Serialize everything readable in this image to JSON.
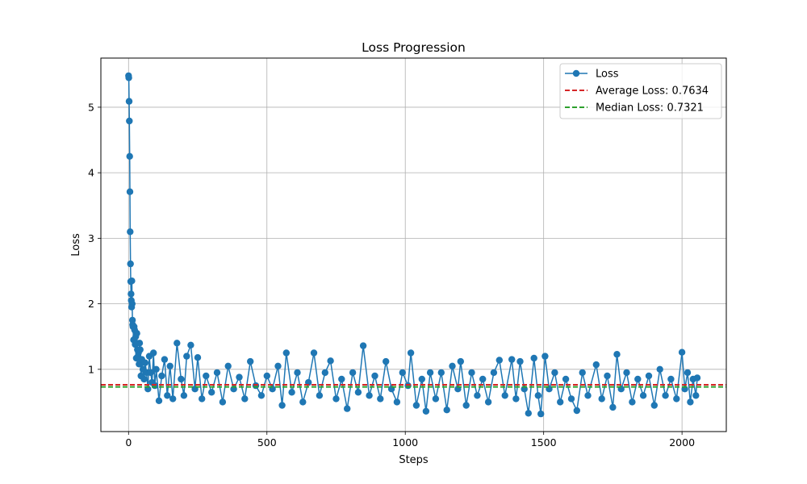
{
  "chart_data": {
    "type": "line",
    "title": "Loss Progression",
    "xlabel": "Steps",
    "ylabel": "Loss",
    "xlim": [
      -100,
      2160
    ],
    "ylim": [
      0.05,
      5.75
    ],
    "x_ticks": [
      0,
      500,
      1000,
      1500,
      2000
    ],
    "y_ticks": [
      1,
      2,
      3,
      4,
      5
    ],
    "grid": true,
    "legend_position": "top-right",
    "series": [
      {
        "name": "Loss",
        "color": "#1f77b4",
        "marker": "circle",
        "points": [
          [
            0,
            5.48
          ],
          [
            1,
            5.45
          ],
          [
            2,
            5.09
          ],
          [
            3,
            4.79
          ],
          [
            4,
            4.25
          ],
          [
            5,
            3.71
          ],
          [
            6,
            3.1
          ],
          [
            7,
            2.61
          ],
          [
            8,
            2.34
          ],
          [
            9,
            2.15
          ],
          [
            10,
            2.05
          ],
          [
            11,
            1.95
          ],
          [
            12,
            2.35
          ],
          [
            13,
            2.0
          ],
          [
            14,
            1.75
          ],
          [
            15,
            1.68
          ],
          [
            16,
            1.65
          ],
          [
            18,
            1.45
          ],
          [
            20,
            1.65
          ],
          [
            22,
            1.6
          ],
          [
            24,
            1.38
          ],
          [
            26,
            1.5
          ],
          [
            28,
            1.17
          ],
          [
            30,
            1.55
          ],
          [
            32,
            1.3
          ],
          [
            34,
            1.2
          ],
          [
            36,
            1.25
          ],
          [
            38,
            1.08
          ],
          [
            40,
            1.4
          ],
          [
            42,
            1.3
          ],
          [
            45,
            0.9
          ],
          [
            48,
            1.15
          ],
          [
            52,
            1.0
          ],
          [
            56,
            0.85
          ],
          [
            60,
            1.1
          ],
          [
            65,
            0.95
          ],
          [
            70,
            0.7
          ],
          [
            75,
            1.2
          ],
          [
            80,
            0.95
          ],
          [
            85,
            0.8
          ],
          [
            90,
            1.25
          ],
          [
            95,
            0.75
          ],
          [
            100,
            1.0
          ],
          [
            110,
            0.52
          ],
          [
            120,
            0.9
          ],
          [
            130,
            1.15
          ],
          [
            140,
            0.6
          ],
          [
            150,
            1.05
          ],
          [
            160,
            0.55
          ],
          [
            175,
            1.4
          ],
          [
            190,
            0.85
          ],
          [
            200,
            0.6
          ],
          [
            210,
            1.2
          ],
          [
            225,
            1.37
          ],
          [
            240,
            0.7
          ],
          [
            250,
            1.18
          ],
          [
            265,
            0.55
          ],
          [
            280,
            0.9
          ],
          [
            300,
            0.65
          ],
          [
            320,
            0.95
          ],
          [
            340,
            0.5
          ],
          [
            360,
            1.05
          ],
          [
            380,
            0.7
          ],
          [
            400,
            0.88
          ],
          [
            420,
            0.55
          ],
          [
            440,
            1.12
          ],
          [
            460,
            0.75
          ],
          [
            480,
            0.6
          ],
          [
            500,
            0.9
          ],
          [
            520,
            0.7
          ],
          [
            540,
            1.05
          ],
          [
            555,
            0.45
          ],
          [
            570,
            1.25
          ],
          [
            590,
            0.65
          ],
          [
            610,
            0.95
          ],
          [
            630,
            0.5
          ],
          [
            650,
            0.8
          ],
          [
            670,
            1.25
          ],
          [
            690,
            0.6
          ],
          [
            710,
            0.95
          ],
          [
            730,
            1.13
          ],
          [
            750,
            0.55
          ],
          [
            770,
            0.85
          ],
          [
            790,
            0.4
          ],
          [
            810,
            0.95
          ],
          [
            830,
            0.65
          ],
          [
            848,
            1.36
          ],
          [
            870,
            0.6
          ],
          [
            890,
            0.9
          ],
          [
            910,
            0.55
          ],
          [
            930,
            1.12
          ],
          [
            950,
            0.7
          ],
          [
            970,
            0.5
          ],
          [
            990,
            0.95
          ],
          [
            1010,
            0.75
          ],
          [
            1020,
            1.25
          ],
          [
            1040,
            0.45
          ],
          [
            1060,
            0.85
          ],
          [
            1075,
            0.36
          ],
          [
            1090,
            0.95
          ],
          [
            1110,
            0.55
          ],
          [
            1130,
            0.95
          ],
          [
            1150,
            0.38
          ],
          [
            1170,
            1.05
          ],
          [
            1190,
            0.7
          ],
          [
            1200,
            1.12
          ],
          [
            1220,
            0.45
          ],
          [
            1240,
            0.95
          ],
          [
            1260,
            0.6
          ],
          [
            1280,
            0.85
          ],
          [
            1300,
            0.5
          ],
          [
            1320,
            0.95
          ],
          [
            1340,
            1.14
          ],
          [
            1360,
            0.6
          ],
          [
            1385,
            1.15
          ],
          [
            1400,
            0.55
          ],
          [
            1415,
            1.12
          ],
          [
            1430,
            0.7
          ],
          [
            1445,
            0.33
          ],
          [
            1465,
            1.17
          ],
          [
            1480,
            0.6
          ],
          [
            1490,
            0.32
          ],
          [
            1505,
            1.2
          ],
          [
            1520,
            0.7
          ],
          [
            1540,
            0.95
          ],
          [
            1560,
            0.5
          ],
          [
            1580,
            0.85
          ],
          [
            1600,
            0.55
          ],
          [
            1620,
            0.37
          ],
          [
            1640,
            0.95
          ],
          [
            1660,
            0.6
          ],
          [
            1690,
            1.07
          ],
          [
            1710,
            0.55
          ],
          [
            1730,
            0.9
          ],
          [
            1750,
            0.42
          ],
          [
            1765,
            1.23
          ],
          [
            1780,
            0.7
          ],
          [
            1800,
            0.95
          ],
          [
            1820,
            0.5
          ],
          [
            1840,
            0.85
          ],
          [
            1860,
            0.6
          ],
          [
            1880,
            0.9
          ],
          [
            1900,
            0.45
          ],
          [
            1920,
            1.0
          ],
          [
            1940,
            0.6
          ],
          [
            1960,
            0.85
          ],
          [
            1980,
            0.55
          ],
          [
            2000,
            1.26
          ],
          [
            2010,
            0.7
          ],
          [
            2020,
            0.95
          ],
          [
            2030,
            0.5
          ],
          [
            2040,
            0.85
          ],
          [
            2050,
            0.6
          ],
          [
            2055,
            0.87
          ]
        ]
      }
    ],
    "reference_lines": [
      {
        "name": "Average Loss: 0.7634",
        "value": 0.7634,
        "color": "#d62728",
        "style": "dashed"
      },
      {
        "name": "Median Loss: 0.7321",
        "value": 0.7321,
        "color": "#2ca02c",
        "style": "dashed"
      }
    ]
  }
}
